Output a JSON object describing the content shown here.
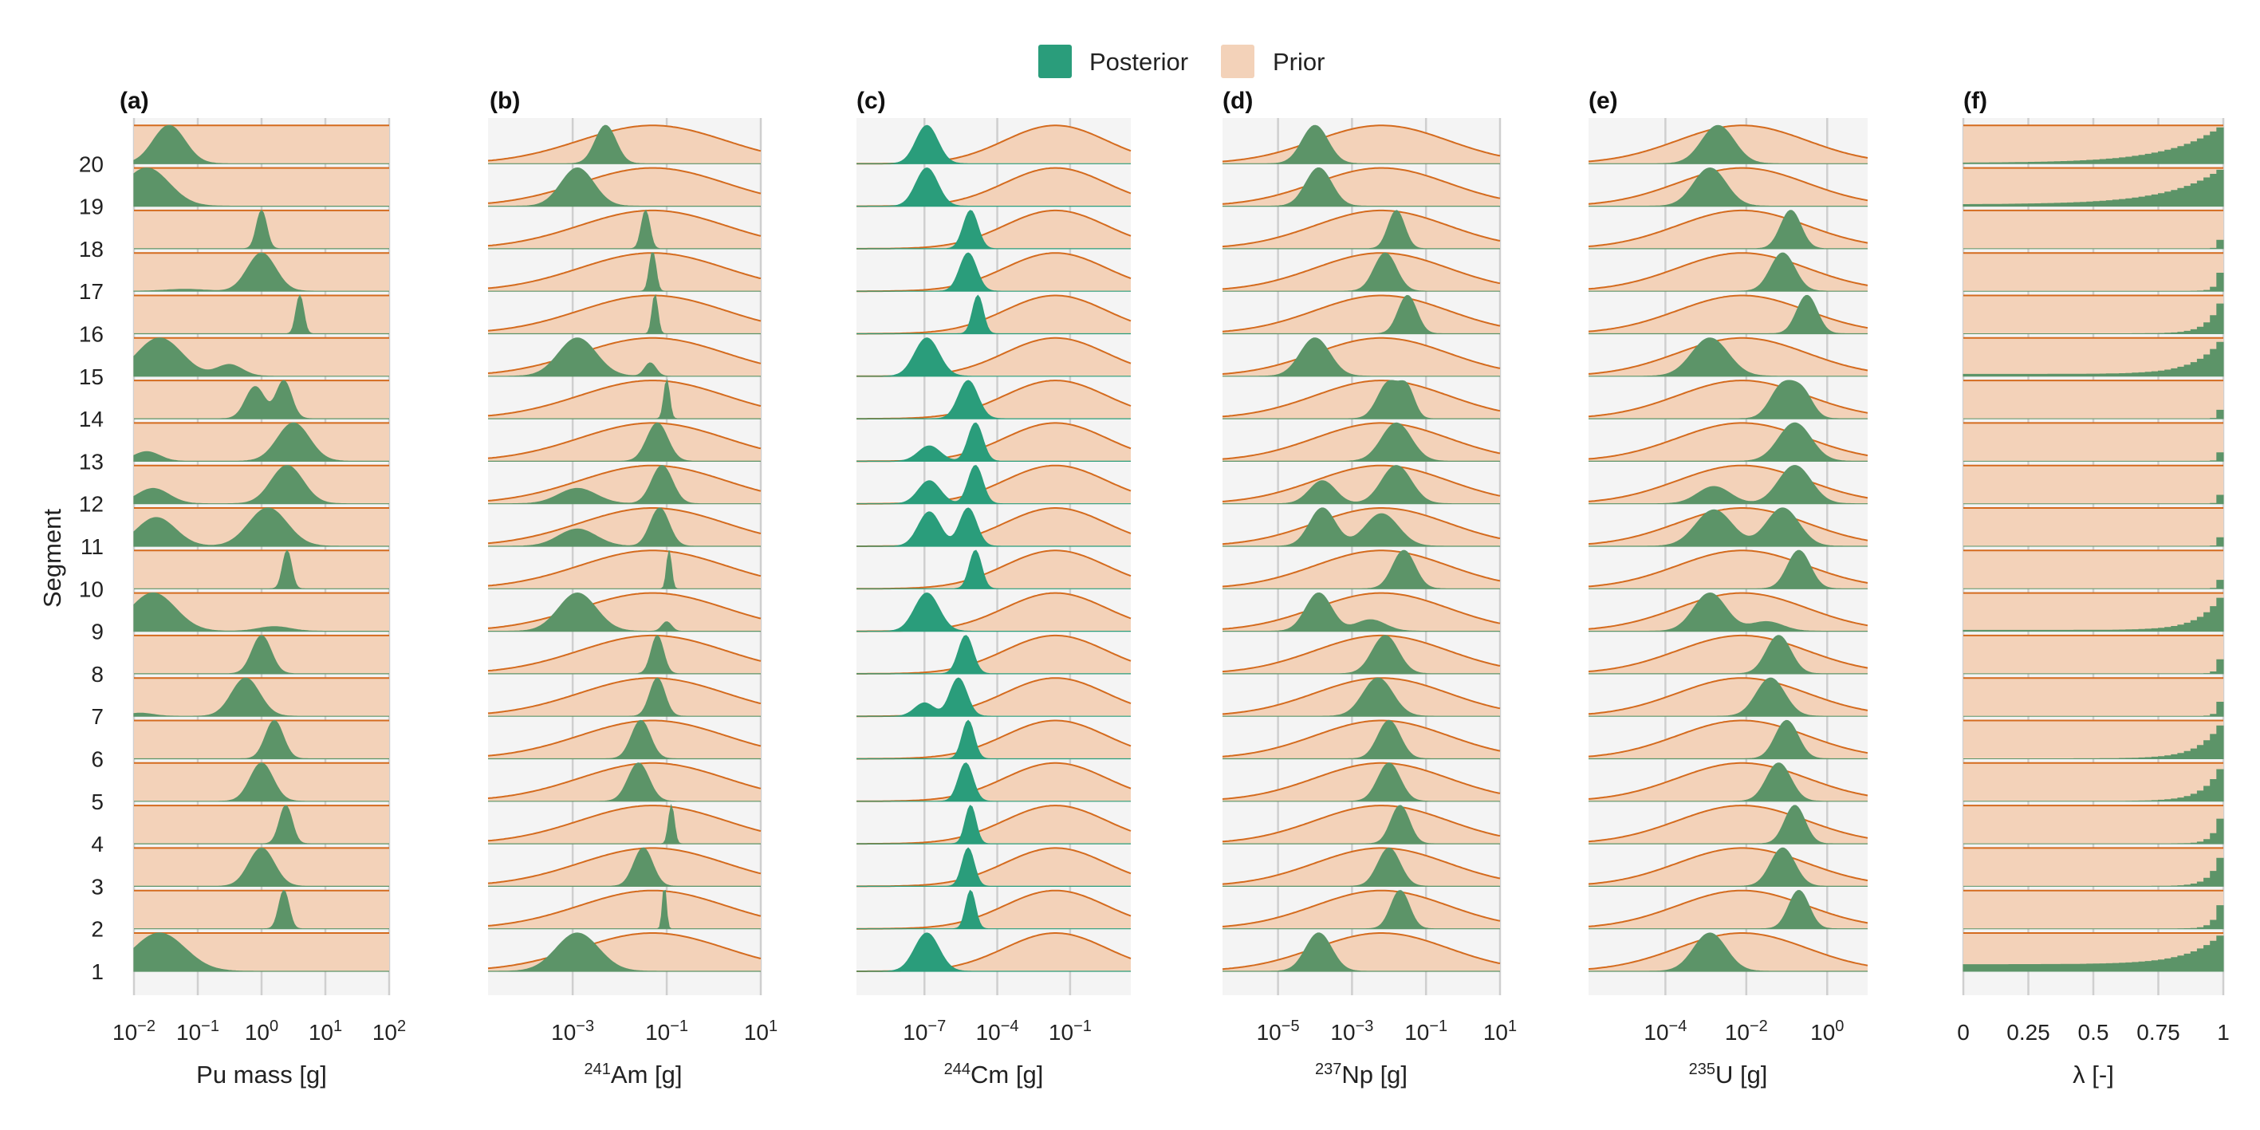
{
  "colors": {
    "posterior": "#2a9d7b",
    "posterior_dark": "#5c9468",
    "prior_fill": "#f3d2b9",
    "prior_line": "#d46b1e",
    "panel_bg": "#f4f4f4",
    "grid": "#cfcfcf"
  },
  "legend": {
    "posterior_label": "Posterior",
    "prior_label": "Prior"
  },
  "y_axis": {
    "label": "Segment",
    "segments": [
      "1",
      "2",
      "3",
      "4",
      "5",
      "6",
      "7",
      "8",
      "9",
      "10",
      "11",
      "12",
      "13",
      "14",
      "15",
      "16",
      "17",
      "18",
      "19",
      "20"
    ]
  },
  "chart_data": [
    {
      "panel": "(a)",
      "type": "ridgeline",
      "xlabel_main": "Pu mass [g]",
      "xlabel_sup": "",
      "scale": "log10",
      "xlim": [
        -2,
        2
      ],
      "ticks": [
        {
          "base": "10",
          "exp": "−2",
          "at": -2
        },
        {
          "base": "10",
          "exp": "−1",
          "at": -1
        },
        {
          "base": "10",
          "exp": "0",
          "at": 0
        },
        {
          "base": "10",
          "exp": "1",
          "at": 1
        },
        {
          "base": "10",
          "exp": "2",
          "at": 2
        }
      ],
      "prior": "flat",
      "posterior_color": "posterior_dark",
      "posterior_modes": {
        "1": [
          [
            -1.6,
            0.4,
            1
          ]
        ],
        "2": [
          [
            0.35,
            0.08,
            1
          ]
        ],
        "3": [
          [
            0.0,
            0.2,
            1
          ]
        ],
        "4": [
          [
            0.38,
            0.1,
            1
          ]
        ],
        "5": [
          [
            0.0,
            0.18,
            1
          ]
        ],
        "6": [
          [
            0.2,
            0.14,
            1
          ]
        ],
        "7": [
          [
            -0.25,
            0.22,
            1
          ],
          [
            -1.9,
            0.2,
            0.08
          ]
        ],
        "8": [
          [
            0.0,
            0.15,
            1
          ]
        ],
        "9": [
          [
            -1.7,
            0.35,
            1
          ],
          [
            0.2,
            0.25,
            0.12
          ]
        ],
        "10": [
          [
            0.4,
            0.07,
            1
          ]
        ],
        "11": [
          [
            -1.65,
            0.3,
            0.75
          ],
          [
            0.1,
            0.3,
            1
          ]
        ],
        "12": [
          [
            -1.7,
            0.25,
            0.4
          ],
          [
            0.4,
            0.25,
            1
          ]
        ],
        "13": [
          [
            -1.8,
            0.2,
            0.25
          ],
          [
            0.5,
            0.25,
            1
          ]
        ],
        "14": [
          [
            -0.1,
            0.15,
            0.85
          ],
          [
            0.35,
            0.12,
            1
          ]
        ],
        "15": [
          [
            -1.6,
            0.35,
            1
          ],
          [
            -0.5,
            0.2,
            0.3
          ]
        ],
        "16": [
          [
            0.6,
            0.06,
            1
          ]
        ],
        "17": [
          [
            0.0,
            0.22,
            1
          ],
          [
            -1.2,
            0.3,
            0.05
          ]
        ],
        "18": [
          [
            0.0,
            0.08,
            1
          ]
        ],
        "19": [
          [
            -1.8,
            0.35,
            1
          ]
        ],
        "20": [
          [
            -1.45,
            0.25,
            1
          ]
        ]
      }
    },
    {
      "panel": "(b)",
      "type": "ridgeline",
      "xlabel_main": "Am [g]",
      "xlabel_sup": "241",
      "scale": "log10",
      "xlim": [
        -4.8,
        1
      ],
      "ticks": [
        {
          "base": "10",
          "exp": "−3",
          "at": -3
        },
        {
          "base": "10",
          "exp": "−1",
          "at": -1
        },
        {
          "base": "10",
          "exp": "1",
          "at": 1
        }
      ],
      "prior": {
        "center": -1.3,
        "sd": 1.55
      },
      "posterior_color": "posterior_dark",
      "posterior_modes": {
        "1": [
          [
            -2.9,
            0.45,
            1
          ]
        ],
        "2": [
          [
            -1.05,
            0.04,
            1
          ]
        ],
        "3": [
          [
            -1.5,
            0.2,
            1
          ]
        ],
        "4": [
          [
            -0.9,
            0.06,
            1
          ]
        ],
        "5": [
          [
            -1.6,
            0.22,
            1
          ]
        ],
        "6": [
          [
            -1.55,
            0.2,
            1
          ]
        ],
        "7": [
          [
            -1.2,
            0.16,
            1
          ]
        ],
        "8": [
          [
            -1.2,
            0.13,
            1
          ]
        ],
        "9": [
          [
            -2.9,
            0.4,
            1
          ],
          [
            -1.0,
            0.1,
            0.25
          ]
        ],
        "10": [
          [
            -0.95,
            0.05,
            1
          ]
        ],
        "11": [
          [
            -2.9,
            0.4,
            0.45
          ],
          [
            -1.15,
            0.2,
            1
          ]
        ],
        "12": [
          [
            -2.9,
            0.4,
            0.4
          ],
          [
            -1.1,
            0.22,
            1
          ]
        ],
        "13": [
          [
            -1.2,
            0.22,
            1
          ]
        ],
        "14": [
          [
            -1.0,
            0.06,
            1
          ]
        ],
        "15": [
          [
            -2.9,
            0.4,
            1
          ],
          [
            -1.35,
            0.12,
            0.35
          ]
        ],
        "16": [
          [
            -1.25,
            0.06,
            1
          ]
        ],
        "17": [
          [
            -1.3,
            0.07,
            1
          ]
        ],
        "18": [
          [
            -1.45,
            0.09,
            1
          ]
        ],
        "19": [
          [
            -2.9,
            0.35,
            1
          ]
        ],
        "20": [
          [
            -2.3,
            0.22,
            1
          ]
        ]
      }
    },
    {
      "panel": "(c)",
      "type": "ridgeline",
      "xlabel_main": "Cm [g]",
      "xlabel_sup": "244",
      "scale": "log10",
      "xlim": [
        -9.8,
        1.5
      ],
      "ticks": [
        {
          "base": "10",
          "exp": "−7",
          "at": -7
        },
        {
          "base": "10",
          "exp": "−4",
          "at": -4
        },
        {
          "base": "10",
          "exp": "−1",
          "at": -1
        }
      ],
      "prior": {
        "center": -1.6,
        "sd": 2.1
      },
      "posterior_color": "posterior",
      "posterior_modes": {
        "1": [
          [
            -6.9,
            0.5,
            1
          ]
        ],
        "2": [
          [
            -5.1,
            0.2,
            1
          ]
        ],
        "3": [
          [
            -5.2,
            0.25,
            1
          ]
        ],
        "4": [
          [
            -5.1,
            0.22,
            1
          ]
        ],
        "5": [
          [
            -5.3,
            0.3,
            1
          ]
        ],
        "6": [
          [
            -5.2,
            0.25,
            1
          ]
        ],
        "7": [
          [
            -5.6,
            0.35,
            1
          ],
          [
            -7.0,
            0.4,
            0.35
          ]
        ],
        "8": [
          [
            -5.3,
            0.3,
            1
          ]
        ],
        "9": [
          [
            -6.9,
            0.5,
            1
          ]
        ],
        "10": [
          [
            -4.9,
            0.25,
            1
          ]
        ],
        "11": [
          [
            -6.8,
            0.45,
            0.9
          ],
          [
            -5.2,
            0.35,
            1
          ]
        ],
        "12": [
          [
            -6.8,
            0.45,
            0.6
          ],
          [
            -4.9,
            0.3,
            1
          ]
        ],
        "13": [
          [
            -6.8,
            0.45,
            0.4
          ],
          [
            -4.9,
            0.3,
            1
          ]
        ],
        "14": [
          [
            -5.2,
            0.4,
            1
          ]
        ],
        "15": [
          [
            -6.9,
            0.5,
            1
          ]
        ],
        "16": [
          [
            -4.8,
            0.22,
            1
          ]
        ],
        "17": [
          [
            -5.2,
            0.35,
            1
          ]
        ],
        "18": [
          [
            -5.1,
            0.3,
            1
          ]
        ],
        "19": [
          [
            -6.9,
            0.45,
            1
          ]
        ],
        "20": [
          [
            -6.9,
            0.45,
            1
          ]
        ]
      }
    },
    {
      "panel": "(d)",
      "type": "ridgeline",
      "xlabel_main": "Np [g]",
      "xlabel_sup": "237",
      "scale": "log10",
      "xlim": [
        -6.5,
        1
      ],
      "ticks": [
        {
          "base": "10",
          "exp": "−5",
          "at": -5
        },
        {
          "base": "10",
          "exp": "−3",
          "at": -3
        },
        {
          "base": "10",
          "exp": "−1",
          "at": -1
        },
        {
          "base": "10",
          "exp": "1",
          "at": 1
        }
      ],
      "prior": {
        "center": -2.2,
        "sd": 1.8
      },
      "posterior_color": "posterior_dark",
      "posterior_modes": {
        "1": [
          [
            -3.9,
            0.35,
            1
          ]
        ],
        "2": [
          [
            -1.7,
            0.25,
            1
          ]
        ],
        "3": [
          [
            -2.0,
            0.3,
            1
          ]
        ],
        "4": [
          [
            -1.7,
            0.25,
            1
          ]
        ],
        "5": [
          [
            -2.0,
            0.3,
            1
          ]
        ],
        "6": [
          [
            -2.0,
            0.3,
            1
          ]
        ],
        "7": [
          [
            -2.3,
            0.4,
            1
          ]
        ],
        "8": [
          [
            -2.1,
            0.35,
            1
          ]
        ],
        "9": [
          [
            -3.9,
            0.35,
            1
          ],
          [
            -2.5,
            0.4,
            0.3
          ]
        ],
        "10": [
          [
            -1.6,
            0.3,
            1
          ]
        ],
        "11": [
          [
            -3.8,
            0.35,
            1
          ],
          [
            -2.2,
            0.45,
            0.85
          ]
        ],
        "12": [
          [
            -3.8,
            0.35,
            0.6
          ],
          [
            -1.8,
            0.4,
            1
          ]
        ],
        "13": [
          [
            -1.8,
            0.4,
            1
          ]
        ],
        "14": [
          [
            -2.0,
            0.3,
            1
          ],
          [
            -1.5,
            0.2,
            0.7
          ]
        ],
        "15": [
          [
            -4.0,
            0.4,
            1
          ]
        ],
        "16": [
          [
            -1.5,
            0.25,
            1
          ]
        ],
        "17": [
          [
            -2.1,
            0.3,
            1
          ]
        ],
        "18": [
          [
            -1.8,
            0.22,
            1
          ]
        ],
        "19": [
          [
            -3.9,
            0.35,
            1
          ]
        ],
        "20": [
          [
            -4.0,
            0.35,
            1
          ]
        ]
      }
    },
    {
      "panel": "(e)",
      "type": "ridgeline",
      "xlabel_main": "U [g]",
      "xlabel_sup": "235",
      "scale": "log10",
      "xlim": [
        -5.9,
        1
      ],
      "ticks": [
        {
          "base": "10",
          "exp": "−4",
          "at": -4
        },
        {
          "base": "10",
          "exp": "−2",
          "at": -2
        },
        {
          "base": "10",
          "exp": "0",
          "at": 0
        }
      ],
      "prior": {
        "center": -2.1,
        "sd": 1.6
      },
      "posterior_color": "posterior_dark",
      "posterior_modes": {
        "1": [
          [
            -2.9,
            0.4,
            1
          ]
        ],
        "2": [
          [
            -0.7,
            0.25,
            1
          ]
        ],
        "3": [
          [
            -1.1,
            0.3,
            1
          ]
        ],
        "4": [
          [
            -0.8,
            0.25,
            1
          ]
        ],
        "5": [
          [
            -1.2,
            0.3,
            1
          ]
        ],
        "6": [
          [
            -1.0,
            0.28,
            1
          ]
        ],
        "7": [
          [
            -1.4,
            0.35,
            1
          ]
        ],
        "8": [
          [
            -1.2,
            0.3,
            1
          ]
        ],
        "9": [
          [
            -2.9,
            0.4,
            1
          ],
          [
            -1.5,
            0.4,
            0.25
          ]
        ],
        "10": [
          [
            -0.7,
            0.28,
            1
          ]
        ],
        "11": [
          [
            -2.8,
            0.45,
            0.95
          ],
          [
            -1.1,
            0.4,
            1
          ]
        ],
        "12": [
          [
            -2.8,
            0.4,
            0.45
          ],
          [
            -0.8,
            0.4,
            1
          ]
        ],
        "13": [
          [
            -0.8,
            0.4,
            1
          ]
        ],
        "14": [
          [
            -1.1,
            0.3,
            1
          ],
          [
            -0.6,
            0.25,
            0.7
          ]
        ],
        "15": [
          [
            -2.9,
            0.45,
            1
          ]
        ],
        "16": [
          [
            -0.5,
            0.25,
            1
          ]
        ],
        "17": [
          [
            -1.1,
            0.3,
            1
          ]
        ],
        "18": [
          [
            -0.9,
            0.25,
            1
          ]
        ],
        "19": [
          [
            -2.9,
            0.4,
            1
          ]
        ],
        "20": [
          [
            -2.7,
            0.4,
            1
          ]
        ]
      }
    },
    {
      "panel": "(f)",
      "type": "ridgeline-histogram",
      "xlabel_main": "λ [-]",
      "xlabel_sup": "",
      "scale": "linear",
      "xlim": [
        0,
        1
      ],
      "ticks": [
        {
          "base": "0",
          "exp": "",
          "at": 0
        },
        {
          "base": "0.25",
          "exp": "",
          "at": 0.25
        },
        {
          "base": "0.5",
          "exp": "",
          "at": 0.5
        },
        {
          "base": "0.75",
          "exp": "",
          "at": 0.75
        },
        {
          "base": "1",
          "exp": "",
          "at": 1
        }
      ],
      "prior": "flat",
      "posterior_color": "posterior_dark",
      "bins": 40,
      "posterior_shape": {
        "1": {
          "base": 0.7,
          "k": 8
        },
        "2": {
          "base": 0.0,
          "k": 40
        },
        "3": {
          "base": 0.0,
          "k": 25
        },
        "4": {
          "base": 0.0,
          "k": 35
        },
        "5": {
          "base": 0.0,
          "k": 15
        },
        "6": {
          "base": 0.0,
          "k": 12
        },
        "7": {
          "base": 0.0,
          "k": 80
        },
        "8": {
          "base": 0.0,
          "k": 80
        },
        "9": {
          "base": 0.1,
          "k": 12
        },
        "10": {
          "base": 0.0,
          "k": 120
        },
        "11": {
          "base": 0.0,
          "k": 120
        },
        "12": {
          "base": 0.0,
          "k": 120
        },
        "13": {
          "base": 0.0,
          "k": 120
        },
        "14": {
          "base": 0.0,
          "k": 120
        },
        "15": {
          "base": 0.2,
          "k": 10
        },
        "16": {
          "base": 0.0,
          "k": 20
        },
        "17": {
          "base": 0.0,
          "k": 60
        },
        "18": {
          "base": 0.0,
          "k": 120
        },
        "19": {
          "base": 0.15,
          "k": 5
        },
        "20": {
          "base": 0.05,
          "k": 5
        }
      }
    }
  ]
}
